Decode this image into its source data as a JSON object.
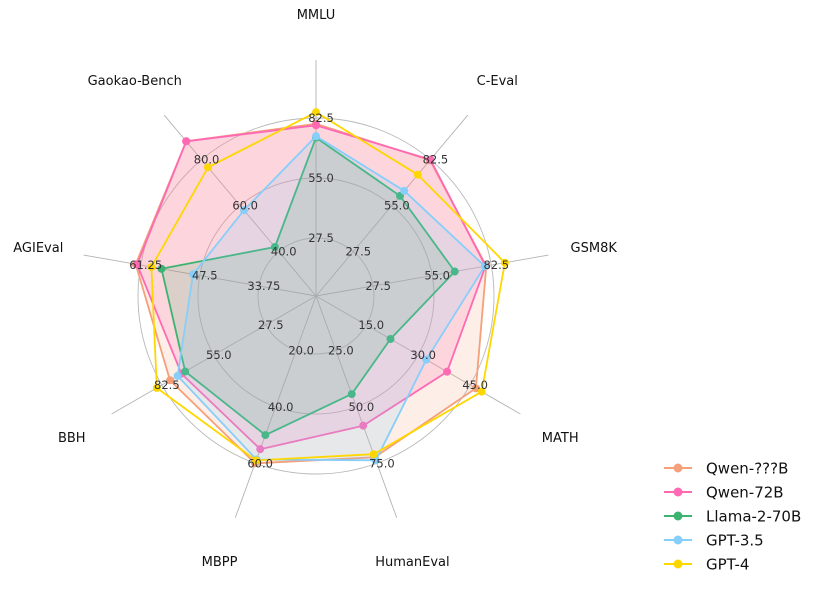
{
  "chart_data": {
    "type": "radar",
    "axes": [
      "MMLU",
      "C-Eval",
      "GSM8K",
      "MATH",
      "HumanEval",
      "MBPP",
      "BBH",
      "AGIEval",
      "Gaokao-Bench"
    ],
    "ring_ticks": [
      [
        "27.5",
        "55.0",
        "82.5"
      ],
      [
        "27.5",
        "55.0",
        "82.5"
      ],
      [
        "27.5",
        "55.0",
        "82.5"
      ],
      [
        "15.0",
        "30.0",
        "45.0"
      ],
      [
        "25.0",
        "50.0",
        "75.0"
      ],
      [
        "20.0",
        "40.0",
        "60.0"
      ],
      [
        "27.5",
        "55.0",
        "82.5"
      ],
      [
        "33.75",
        "47.5",
        "61.25"
      ],
      [
        "40.0",
        "60.0",
        "80.0"
      ]
    ],
    "ring_max": [
      82.5,
      82.5,
      82.5,
      45.0,
      75.0,
      60.0,
      82.5,
      61.25,
      80.0
    ],
    "ring_min": [
      0,
      0,
      0,
      0,
      0,
      0,
      0,
      20,
      20
    ],
    "series": [
      {
        "name": "Qwen-???B",
        "color": "#f5a07a",
        "fill": true,
        "values": [
          78.5,
          82.0,
          79.0,
          47.5,
          71.0,
          60.0,
          76.0,
          63.0,
          92.0
        ]
      },
      {
        "name": "Qwen-72B",
        "color": "#ff69b4",
        "fill": true,
        "values": [
          77.5,
          82.5,
          78.5,
          35.0,
          50.0,
          52.5,
          67.0,
          62.5,
          92.0
        ]
      },
      {
        "name": "Llama-2-70B",
        "color": "#3cb371",
        "fill": true,
        "values": [
          69.0,
          50.0,
          57.0,
          10.5,
          29.0,
          45.0,
          64.0,
          54.0,
          23.0
        ]
      },
      {
        "name": "GPT-3.5",
        "color": "#87cefa",
        "fill": true,
        "values": [
          70.0,
          54.5,
          78.0,
          26.0,
          73.0,
          58.0,
          70.0,
          43.0,
          47.0
        ]
      },
      {
        "name": "GPT-4",
        "color": "#ffd700",
        "fill": false,
        "values": [
          86.5,
          69.0,
          92.0,
          50.0,
          69.0,
          58.5,
          86.5,
          57.5,
          75.0
        ]
      }
    ]
  }
}
